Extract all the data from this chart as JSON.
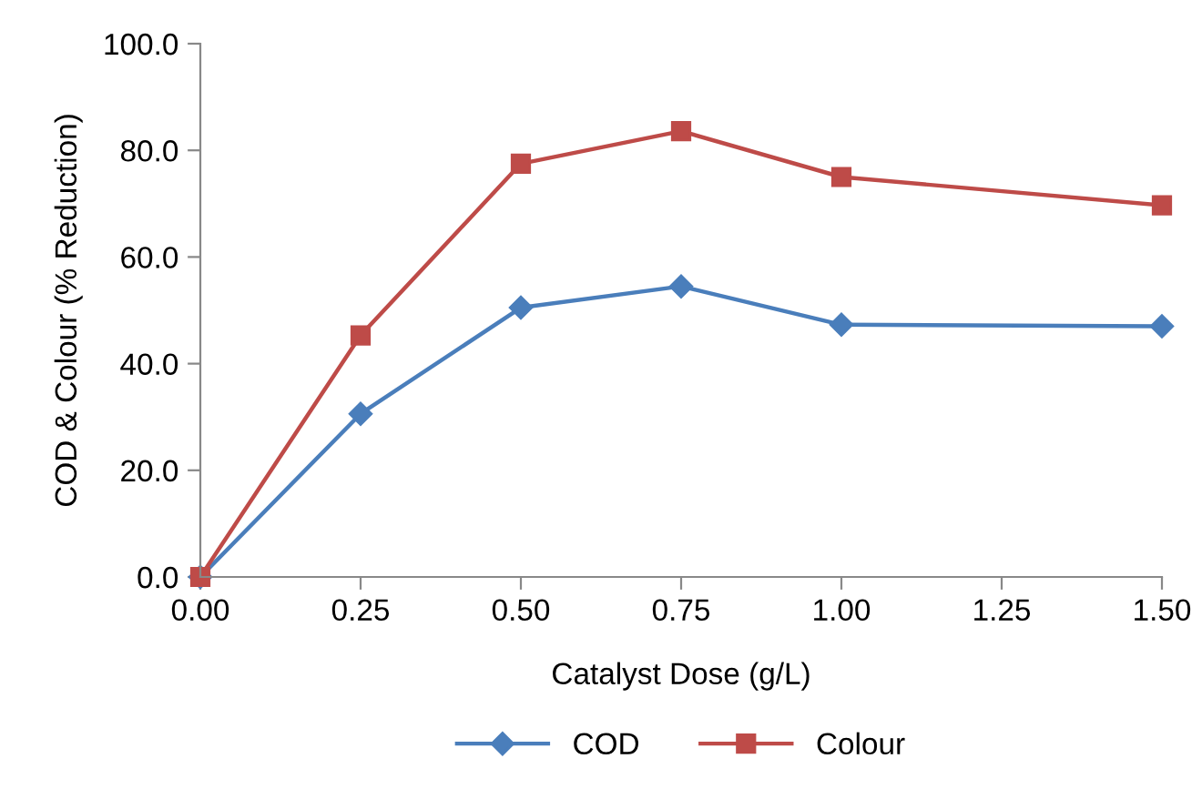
{
  "chart_data": {
    "type": "line",
    "xlabel": "Catalyst Dose (g/L)",
    "ylabel": "COD & Colour (% Reduction)",
    "x": [
      0,
      0.25,
      0.5,
      0.75,
      1.0,
      1.5
    ],
    "series": [
      {
        "name": "COD",
        "color": "#4a7ebb",
        "marker": "diamond",
        "values": [
          0,
          30.6,
          50.5,
          54.5,
          47.3,
          47.0
        ]
      },
      {
        "name": "Colour",
        "color": "#be4b48",
        "marker": "square",
        "values": [
          0,
          45.3,
          77.5,
          83.6,
          75.0,
          69.7
        ]
      }
    ],
    "xlim": [
      0,
      1.5
    ],
    "xticks": [
      {
        "value": 0,
        "label": "0.00"
      },
      {
        "value": 0.25,
        "label": "0.25"
      },
      {
        "value": 0.5,
        "label": "0.50"
      },
      {
        "value": 0.75,
        "label": "0.75"
      },
      {
        "value": 1.0,
        "label": "1.00"
      },
      {
        "value": 1.25,
        "label": "1.25"
      },
      {
        "value": 1.5,
        "label": "1.50"
      }
    ],
    "ylim": [
      0,
      100
    ],
    "yticks": [
      {
        "value": 0,
        "label": "0.0"
      },
      {
        "value": 20,
        "label": "20.0"
      },
      {
        "value": 40,
        "label": "40.0"
      },
      {
        "value": 60,
        "label": "60.0"
      },
      {
        "value": 80,
        "label": "80.0"
      },
      {
        "value": 100,
        "label": "100.0"
      }
    ],
    "grid": false,
    "legend": "bottom",
    "line_style": "solid"
  }
}
